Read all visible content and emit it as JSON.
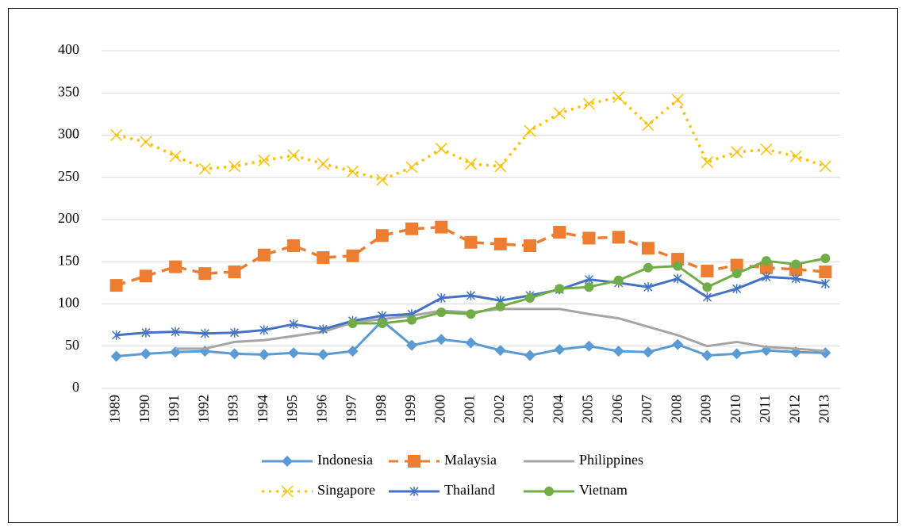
{
  "chart_data": {
    "type": "line",
    "categories": [
      "1989",
      "1990",
      "1991",
      "1992",
      "1993",
      "1994",
      "1995",
      "1996",
      "1997",
      "1998",
      "1999",
      "2000",
      "2001",
      "2002",
      "2003",
      "2004",
      "2005",
      "2006",
      "2007",
      "2008",
      "2009",
      "2010",
      "2011",
      "2012",
      "2013"
    ],
    "series": [
      {
        "name": "Indonesia",
        "color": "#5b9bd5",
        "marker": "diamond",
        "dash": "solid",
        "values": [
          38,
          41,
          43,
          44,
          41,
          40,
          42,
          40,
          44,
          80,
          51,
          58,
          54,
          45,
          39,
          46,
          50,
          44,
          43,
          52,
          39,
          41,
          45,
          43,
          42
        ]
      },
      {
        "name": "Malaysia",
        "color": "#ed7d31",
        "marker": "square",
        "dash": "dashed",
        "values": [
          122,
          133,
          144,
          136,
          138,
          158,
          169,
          155,
          157,
          181,
          189,
          191,
          173,
          171,
          169,
          185,
          178,
          179,
          166,
          153,
          139,
          146,
          143,
          141,
          138
        ]
      },
      {
        "name": "Philippines",
        "color": "#a5a5a5",
        "marker": "none",
        "dash": "solid",
        "values": [
          null,
          null,
          47,
          47,
          55,
          57,
          62,
          67,
          78,
          82,
          86,
          92,
          90,
          94,
          94,
          94,
          88,
          83,
          73,
          63,
          50,
          55,
          49,
          47,
          44
        ]
      },
      {
        "name": "Singapore",
        "color": "#ffc000",
        "marker": "x",
        "dash": "dotted",
        "values": [
          300,
          292,
          275,
          260,
          263,
          270,
          276,
          266,
          257,
          247,
          262,
          284,
          266,
          263,
          305,
          326,
          337,
          345,
          312,
          342,
          268,
          280,
          283,
          275,
          263
        ]
      },
      {
        "name": "Thailand",
        "color": "#4472c4",
        "marker": "star",
        "dash": "solid",
        "values": [
          63,
          66,
          67,
          65,
          66,
          69,
          76,
          70,
          80,
          86,
          88,
          107,
          110,
          104,
          110,
          117,
          129,
          125,
          120,
          130,
          108,
          118,
          132,
          130,
          124
        ]
      },
      {
        "name": "Vietnam",
        "color": "#70ad47",
        "marker": "circle",
        "dash": "solid",
        "values": [
          null,
          null,
          null,
          null,
          null,
          null,
          null,
          null,
          77,
          77,
          81,
          90,
          88,
          97,
          107,
          118,
          120,
          128,
          143,
          145,
          120,
          136,
          151,
          147,
          154
        ]
      }
    ],
    "ylim": [
      0,
      400
    ],
    "yticks": [
      0,
      50,
      100,
      150,
      200,
      250,
      300,
      350,
      400
    ],
    "grid": true,
    "legend": "bottom"
  }
}
